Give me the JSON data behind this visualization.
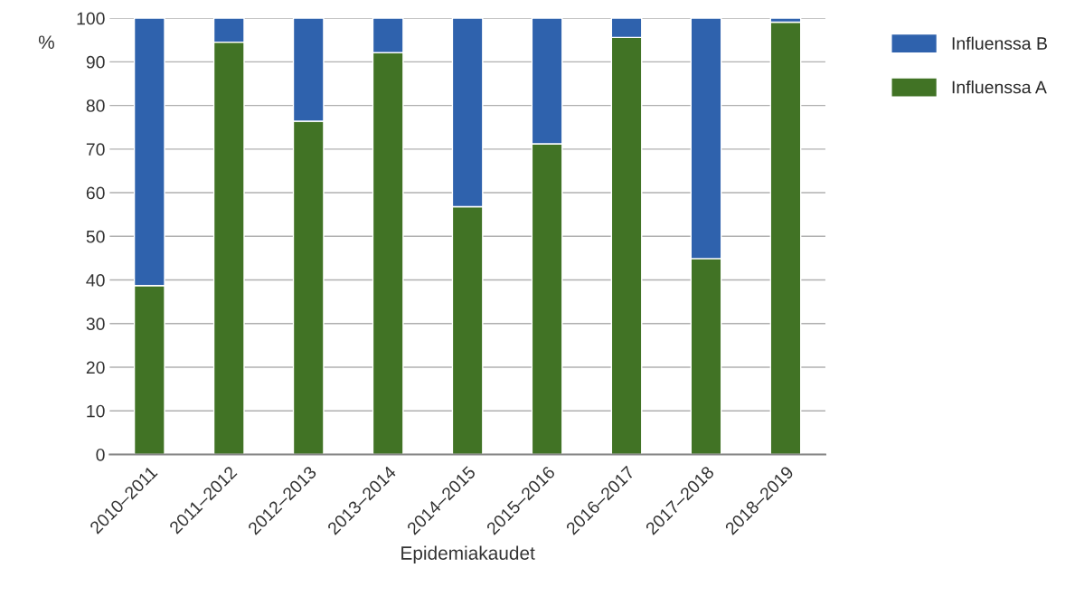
{
  "chart_data": {
    "type": "bar",
    "stacked": true,
    "xlabel": "Epidemiakaudet",
    "ylabel": "%",
    "categories": [
      "2010–2011",
      "2011–2012",
      "2012–2013",
      "2013–2014",
      "2014–2015",
      "2015–2016",
      "2016–2017",
      "2017–2018",
      "2018–2019"
    ],
    "series": [
      {
        "name": "Influenssa A",
        "color": "#417325",
        "values": [
          38.7,
          94.5,
          76.4,
          92.1,
          56.8,
          71.2,
          95.6,
          44.9,
          99.1
        ]
      },
      {
        "name": "Influenssa B",
        "color": "#2f62ad",
        "values": [
          61.3,
          5.5,
          23.6,
          7.9,
          43.2,
          28.8,
          4.4,
          55.1,
          0.9
        ]
      }
    ],
    "ylim": [
      0,
      100
    ],
    "yticks": [
      0,
      10,
      20,
      30,
      40,
      50,
      60,
      70,
      80,
      90,
      100
    ],
    "grid": "y",
    "legend": "top right"
  }
}
